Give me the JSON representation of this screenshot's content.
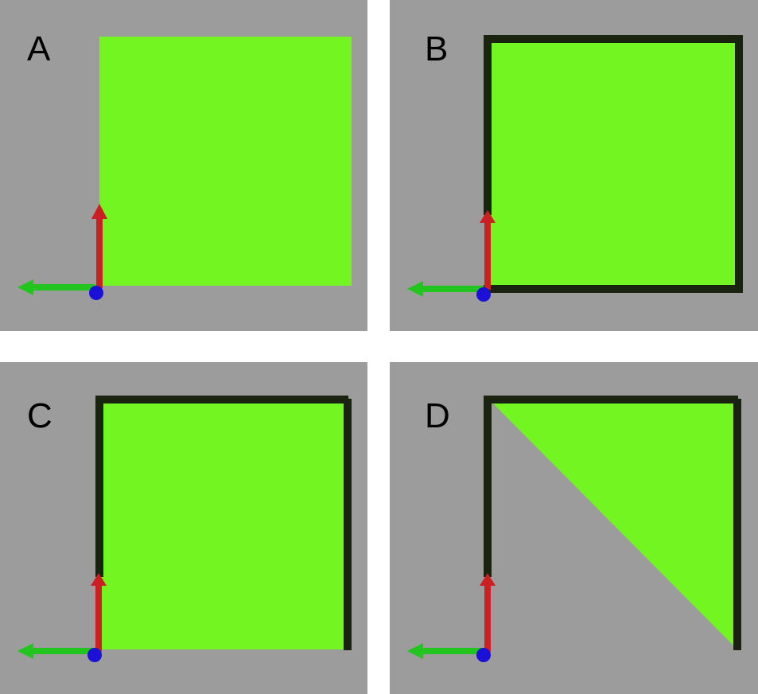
{
  "panels": [
    {
      "label": "A"
    },
    {
      "label": "B"
    },
    {
      "label": "C"
    },
    {
      "label": "D"
    }
  ],
  "colors": {
    "background": "#9c9c9c",
    "fill": "#72f520",
    "outline": "#19230f",
    "axis_vertical": "#cc1f24",
    "axis_horizontal": "#22c41e",
    "origin": "#1a10d8"
  }
}
